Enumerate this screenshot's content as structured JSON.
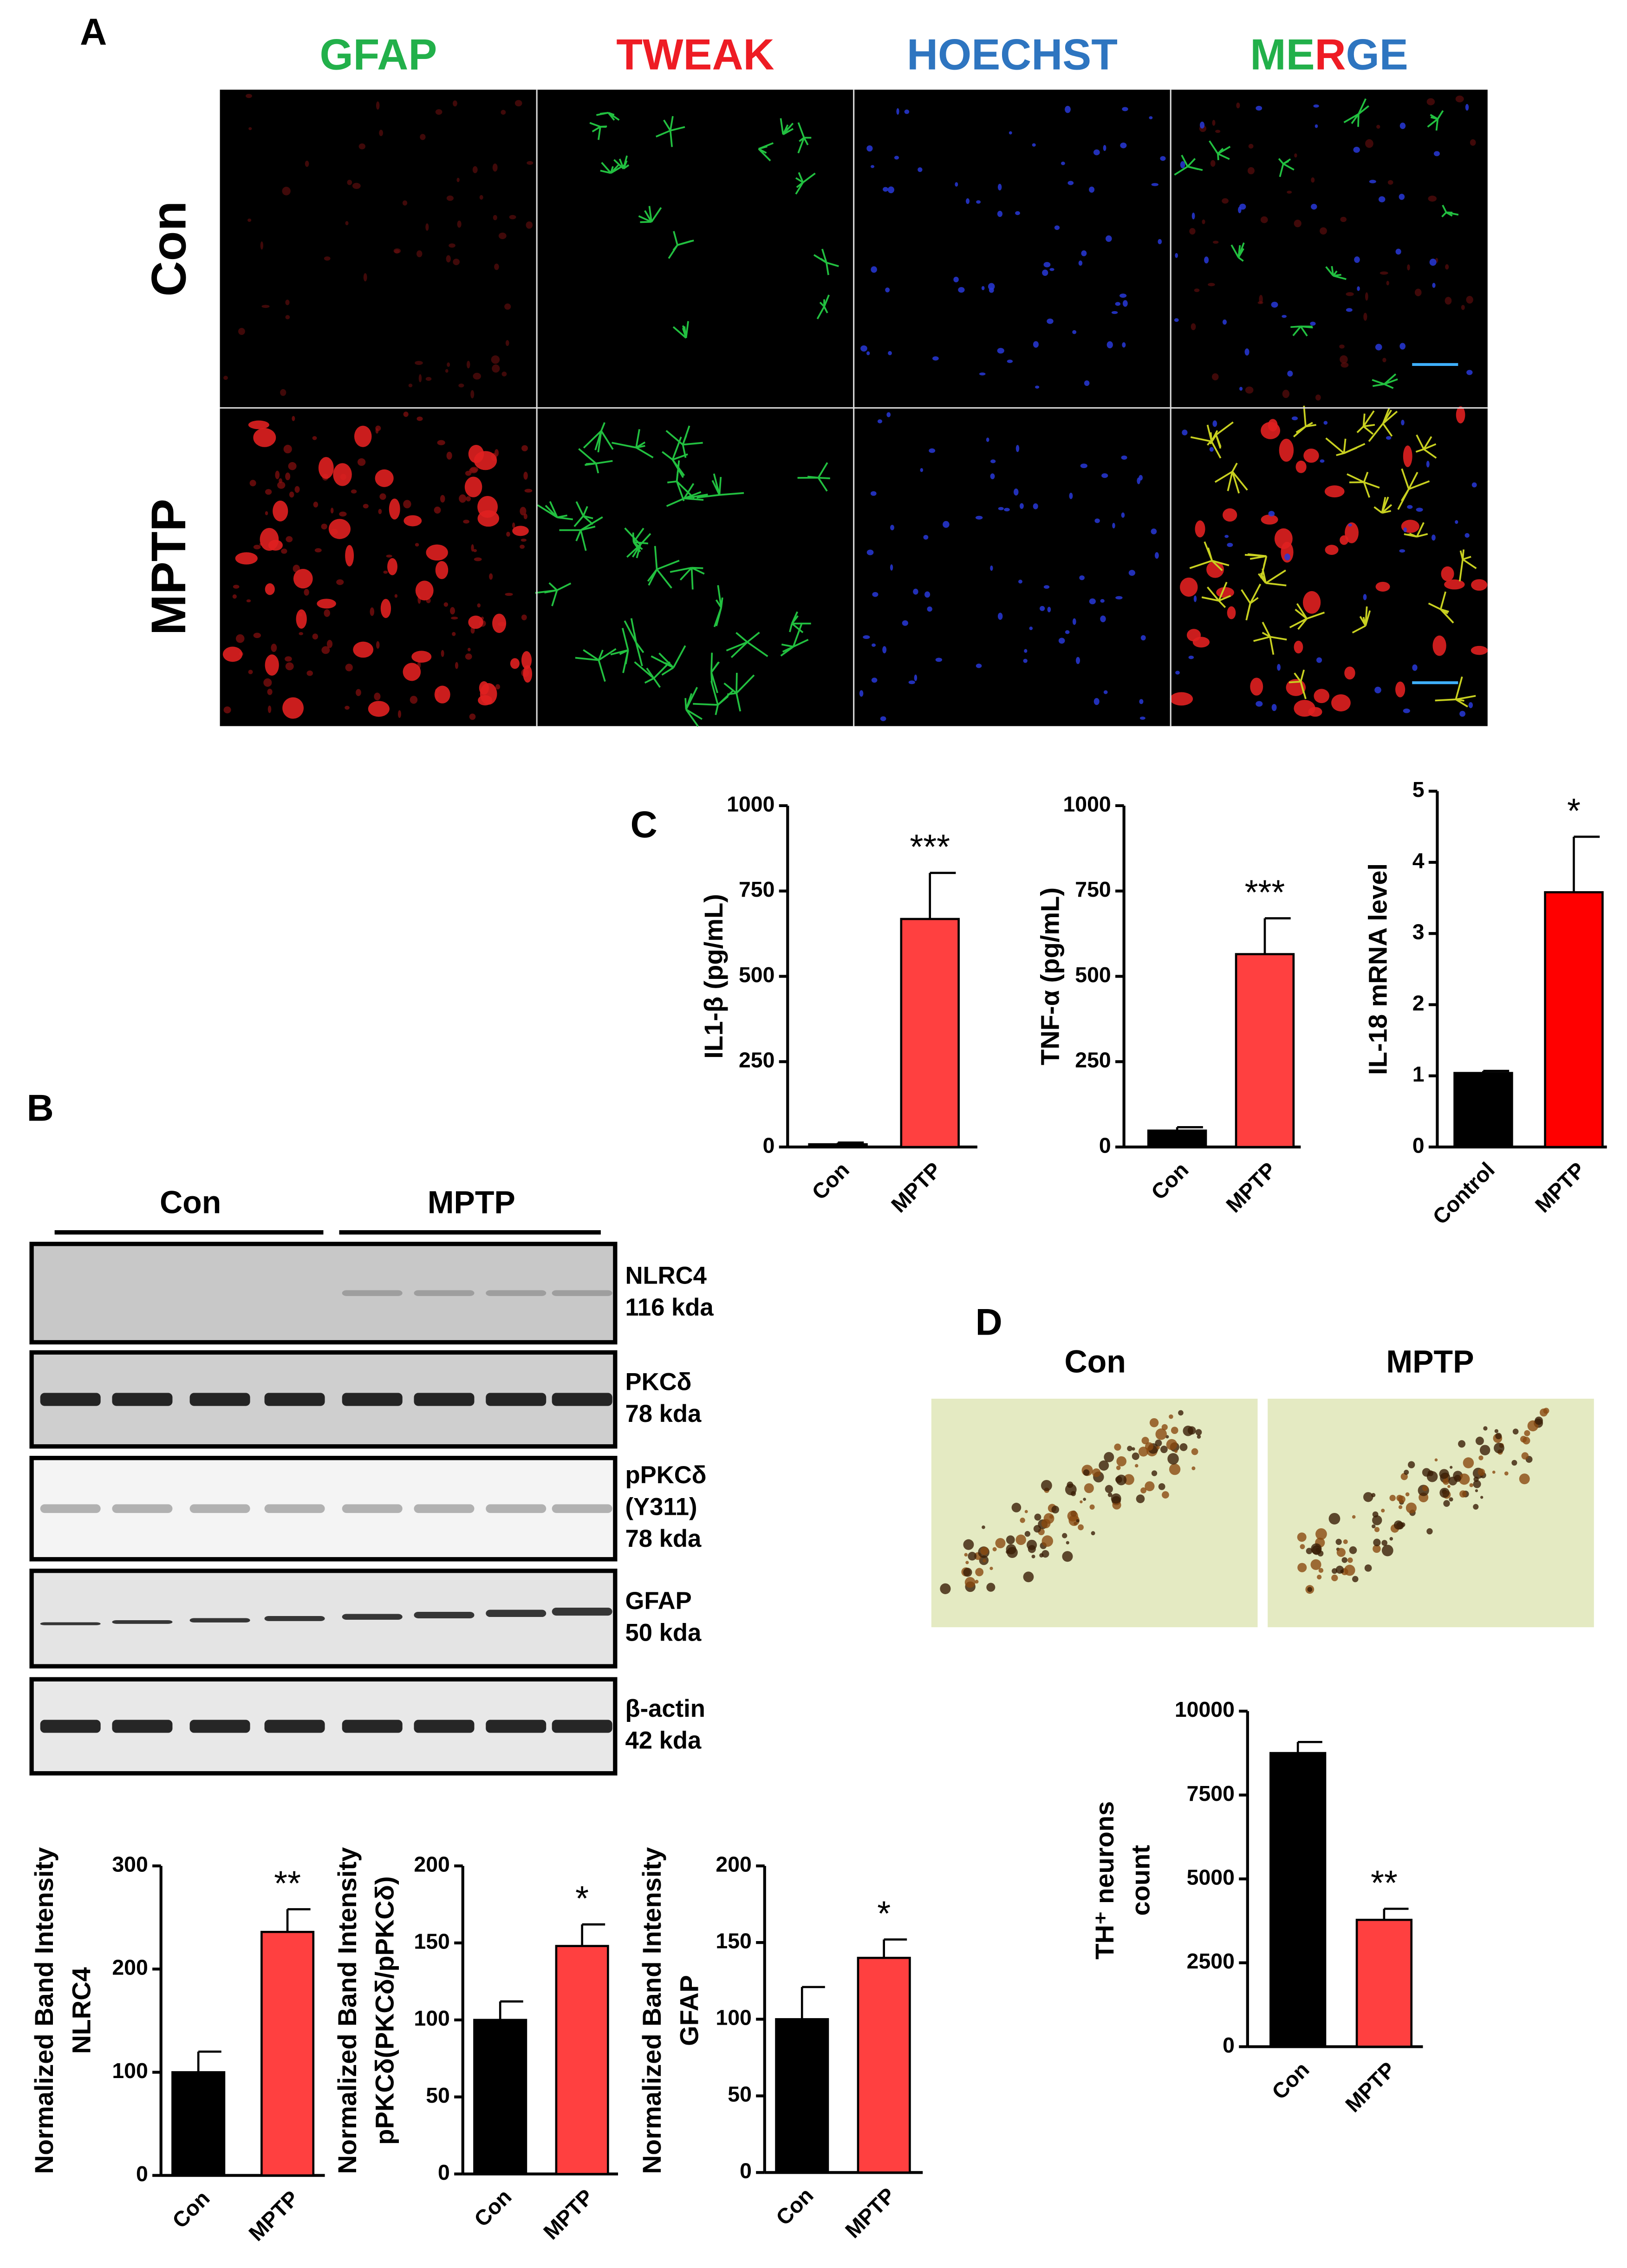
{
  "panel_labels": [
    "A",
    "B",
    "C",
    "D"
  ],
  "panel_a": {
    "columns": [
      "GFAP",
      "TWEAK",
      "HOECHST",
      "MERGE"
    ],
    "rows": [
      "Con",
      "MPTP"
    ]
  },
  "panel_b": {
    "groups": [
      "Con",
      "MPTP"
    ],
    "bands": [
      [
        "NLRC4",
        "116 kda"
      ],
      [
        "PKCδ",
        "78 kda"
      ],
      [
        "pPKCδ",
        "(Y311)",
        "78 kda"
      ],
      [
        "GFAP",
        "50 kda"
      ],
      [
        "β-actin",
        "42 kda"
      ]
    ]
  },
  "panel_d": {
    "images": [
      "Con",
      "MPTP"
    ]
  },
  "chart_data": [
    {
      "type": "bar",
      "ylabel": [
        "IL1-β (pg/mL)"
      ],
      "categories": [
        "Con",
        "MPTP"
      ],
      "values": [
        8,
        668
      ],
      "errors": [
        5,
        135
      ],
      "colors": [
        "#000000",
        "#ff4040"
      ],
      "ylim": [
        0,
        1000
      ],
      "yticks": [
        0,
        250,
        500,
        750,
        1000
      ],
      "annotation": "***"
    },
    {
      "type": "bar",
      "ylabel": [
        "TNF-α (pg/mL)"
      ],
      "categories": [
        "Con",
        "MPTP"
      ],
      "values": [
        48,
        565
      ],
      "errors": [
        10,
        105
      ],
      "colors": [
        "#000000",
        "#ff4040"
      ],
      "ylim": [
        0,
        1000
      ],
      "yticks": [
        0,
        250,
        500,
        750,
        1000
      ],
      "annotation": "***"
    },
    {
      "type": "bar",
      "ylabel": [
        "IL-18 mRNA level"
      ],
      "categories": [
        "Control",
        "MPTP"
      ],
      "values": [
        1.04,
        3.58
      ],
      "errors": [
        0.03,
        0.78
      ],
      "colors": [
        "#000000",
        "#ff0000"
      ],
      "ylim": [
        0,
        5
      ],
      "yticks": [
        0,
        1,
        2,
        3,
        4,
        5
      ],
      "annotation": "*"
    },
    {
      "type": "bar",
      "ylabel": [
        "Normalized Band Intensity",
        "NLRC4"
      ],
      "categories": [
        "Con",
        "MPTP"
      ],
      "values": [
        100,
        236
      ],
      "errors": [
        20,
        22
      ],
      "colors": [
        "#000000",
        "#ff4040"
      ],
      "ylim": [
        0,
        300
      ],
      "yticks": [
        0,
        100,
        200,
        300
      ],
      "annotation": "**"
    },
    {
      "type": "bar",
      "ylabel": [
        "Normalized Band Intensity",
        "pPKCδ(PKCδ/pPKCδ)"
      ],
      "categories": [
        "Con",
        "MPTP"
      ],
      "values": [
        100,
        148
      ],
      "errors": [
        12,
        14
      ],
      "colors": [
        "#000000",
        "#ff4040"
      ],
      "ylim": [
        0,
        200
      ],
      "yticks": [
        0,
        50,
        100,
        150,
        200
      ],
      "annotation": "*"
    },
    {
      "type": "bar",
      "ylabel": [
        "Normalized Band Intensity",
        "GFAP"
      ],
      "categories": [
        "Con",
        "MPTP"
      ],
      "values": [
        100,
        140
      ],
      "errors": [
        21,
        12
      ],
      "colors": [
        "#000000",
        "#ff4040"
      ],
      "ylim": [
        0,
        200
      ],
      "yticks": [
        0,
        50,
        100,
        150,
        200
      ],
      "annotation": "*"
    },
    {
      "type": "bar",
      "ylabel": [
        "TH⁺ neurons",
        "count"
      ],
      "categories": [
        "Con",
        "MPTP"
      ],
      "values": [
        8750,
        3780
      ],
      "errors": [
        330,
        330
      ],
      "colors": [
        "#000000",
        "#ff4040"
      ],
      "ylim": [
        0,
        10000
      ],
      "yticks": [
        0,
        2500,
        5000,
        7500,
        10000
      ],
      "annotation": "**"
    }
  ]
}
